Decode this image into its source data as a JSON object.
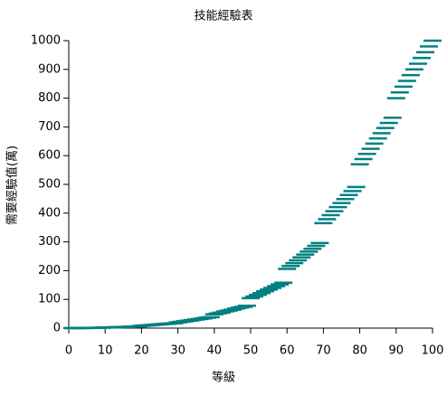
{
  "chart_data": {
    "type": "scatter",
    "title": "技能經驗表",
    "x_label": "等級",
    "y_label": "需要經驗值(萬)",
    "color": "#008080",
    "marker": "dash",
    "x": [
      1,
      2,
      3,
      4,
      5,
      6,
      7,
      8,
      9,
      10,
      11,
      12,
      13,
      14,
      15,
      16,
      17,
      18,
      19,
      20,
      21,
      22,
      23,
      24,
      25,
      26,
      27,
      28,
      29,
      30,
      31,
      32,
      33,
      34,
      35,
      36,
      37,
      38,
      39,
      40,
      41,
      42,
      43,
      44,
      45,
      46,
      47,
      48,
      49,
      50,
      51,
      52,
      53,
      54,
      55,
      56,
      57,
      58,
      59,
      60,
      61,
      62,
      63,
      64,
      65,
      66,
      67,
      68,
      69,
      70,
      71,
      72,
      73,
      74,
      75,
      76,
      77,
      78,
      79,
      80,
      81,
      82,
      83,
      84,
      85,
      86,
      87,
      88,
      89,
      90,
      91,
      92,
      93,
      94,
      95,
      96,
      97,
      98,
      99,
      100
    ],
    "values": [
      0.1,
      0.2,
      0.3,
      0.4,
      0.5,
      0.7,
      0.9,
      1.1,
      1.4,
      2,
      2.4,
      2.8,
      3.2,
      3.6,
      4,
      4.5,
      5,
      5.5,
      6,
      8,
      9,
      10,
      11,
      12,
      13,
      14,
      15,
      16,
      17,
      20,
      22,
      24,
      26,
      28,
      30,
      32,
      34,
      36,
      38,
      48,
      51,
      54,
      58,
      61,
      64,
      68,
      71,
      74,
      78,
      104,
      110,
      116,
      122,
      128,
      134,
      140,
      146,
      152,
      158,
      206,
      216,
      226,
      236,
      246,
      256,
      266,
      276,
      286,
      296,
      365,
      379,
      393,
      407,
      421,
      435,
      449,
      463,
      477,
      491,
      570,
      588,
      606,
      624,
      642,
      660,
      678,
      696,
      714,
      732,
      800,
      820,
      840,
      860,
      880,
      900,
      920,
      940,
      960,
      980,
      1000
    ],
    "xlim": [
      0,
      100
    ],
    "xticks": [
      0,
      10,
      20,
      30,
      40,
      50,
      60,
      70,
      80,
      90,
      100
    ],
    "ylim": [
      0,
      1000
    ],
    "yticks": [
      0,
      100,
      200,
      300,
      400,
      500,
      600,
      700,
      800,
      900,
      1000
    ],
    "grid": false
  }
}
